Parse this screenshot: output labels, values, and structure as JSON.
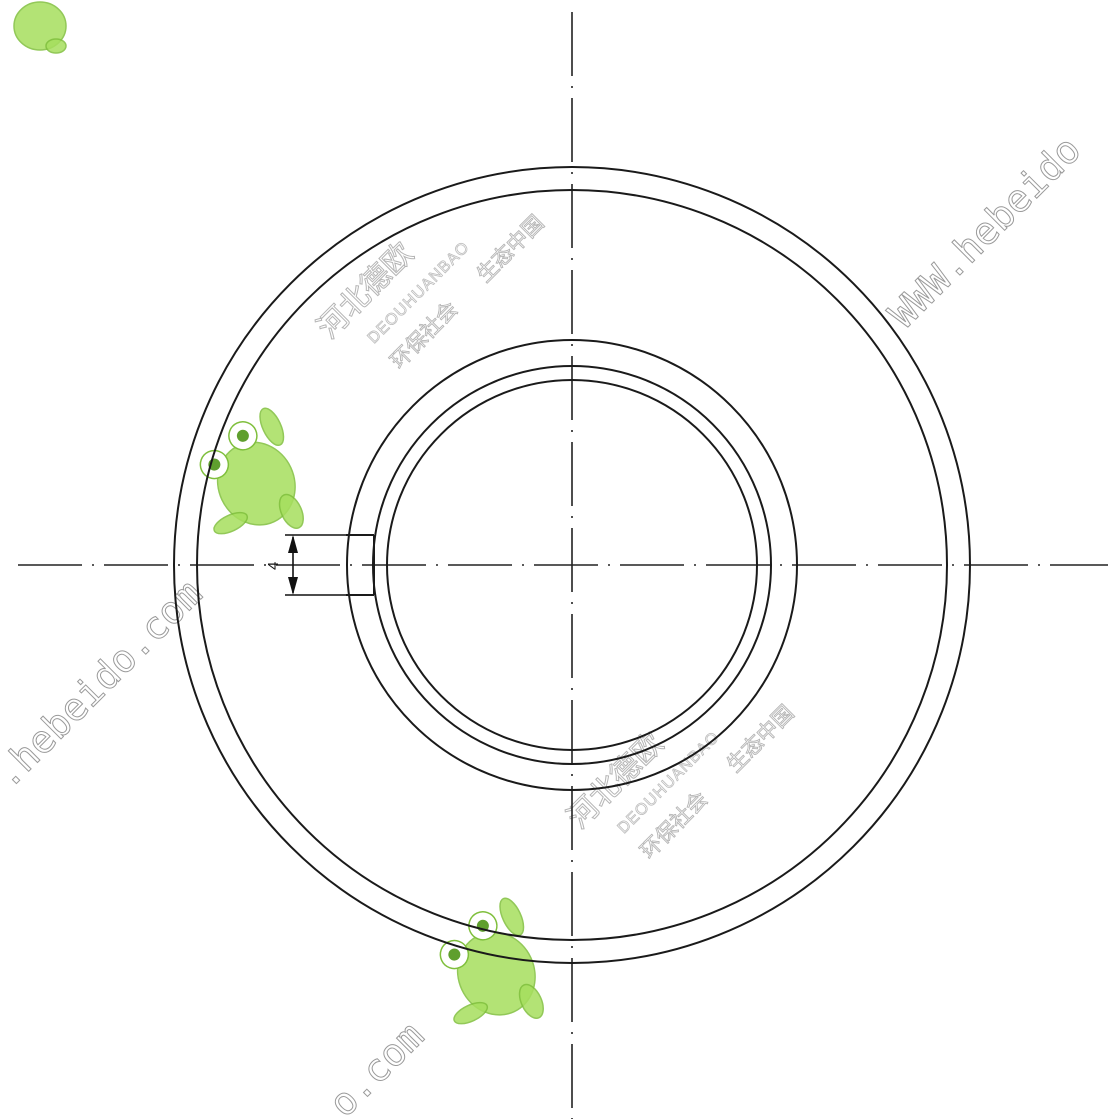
{
  "drawing": {
    "dimension_text": "4"
  },
  "watermarks": {
    "company_cn": "河北德欧",
    "company_en": "DEOUHUANBAO",
    "slogan_left": "环保社会",
    "slogan_right": "生态中国",
    "url_right": "WWW.hebeido",
    "url_left": ".hebeido.com",
    "url_bottom": "o.com"
  },
  "colors": {
    "line": "#1a1a1a",
    "watermark_text": "#b5b5b5",
    "frog_green": "#a6df5e"
  }
}
